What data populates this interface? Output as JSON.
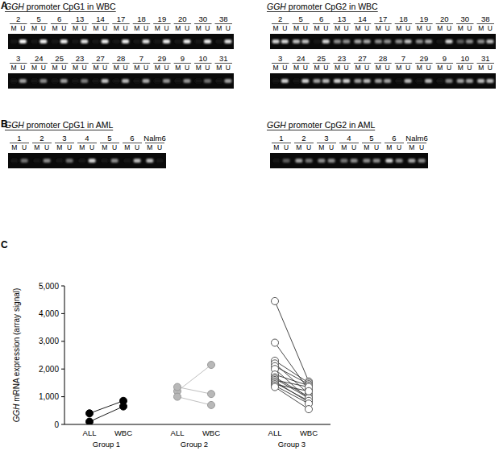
{
  "panels": [
    {
      "label": "A",
      "gels": [
        {
          "title": "GGH promoter CpG1 in WBC",
          "lane_labels": [
            "M",
            "U"
          ],
          "rows": [
            {
              "samples": [
                "2",
                "5",
                "6",
                "13",
                "14",
                "17",
                "18",
                "19",
                "20",
                "30",
                "38"
              ],
              "M": [
                0,
                0,
                0,
                0,
                0,
                0,
                0,
                0,
                0,
                0,
                0
              ],
              "U": [
                0.95,
                0.9,
                0.9,
                0.85,
                0.9,
                0.9,
                0.85,
                0.9,
                0.9,
                0.9,
                0.85
              ]
            },
            {
              "samples": [
                "3",
                "24",
                "25",
                "23",
                "27",
                "28",
                "7",
                "29",
                "9",
                "10",
                "31"
              ],
              "M": [
                0,
                0,
                0,
                0,
                0,
                0,
                0,
                0,
                0,
                0,
                0
              ],
              "U": [
                0.6,
                0.5,
                0.6,
                0.45,
                0.75,
                0.7,
                0.65,
                0.55,
                0.55,
                0.4,
                0.6
              ]
            }
          ]
        },
        {
          "title": "GGH promoter CpG2 in WBC",
          "lane_labels": [
            "M",
            "U"
          ],
          "rows": [
            {
              "samples": [
                "2",
                "5",
                "6",
                "13",
                "14",
                "17",
                "18",
                "19",
                "20",
                "30",
                "38"
              ],
              "M": [
                0.8,
                0.7,
                0,
                0.5,
                0.6,
                0.5,
                0.5,
                0.5,
                0,
                0.3,
                0.5
              ],
              "U": [
                0.8,
                0.7,
                0.8,
                0.5,
                0.6,
                0.5,
                0.7,
                0.6,
                0.8,
                0.5,
                0.7
              ]
            },
            {
              "samples": [
                "3",
                "24",
                "25",
                "23",
                "27",
                "28",
                "7",
                "29",
                "9",
                "10",
                "31"
              ],
              "M": [
                0,
                0,
                0.6,
                0.8,
                0.6,
                0.6,
                0,
                0,
                0,
                0.6,
                0.7
              ],
              "U": [
                0.8,
                0.8,
                0.7,
                0.8,
                0.7,
                0.6,
                0.7,
                0.7,
                0.5,
                0.6,
                0.7
              ]
            }
          ]
        }
      ]
    },
    {
      "label": "B",
      "gels": [
        {
          "title": "GGH promoter CpG1 in AML",
          "lane_labels": [
            "M",
            "U"
          ],
          "rows": [
            {
              "samples": [
                "1",
                "2",
                "3",
                "4",
                "5",
                "6",
                "Nalm6"
              ],
              "M": [
                0,
                0,
                0,
                0,
                0,
                0,
                0.7
              ],
              "U": [
                0.4,
                0.5,
                0.4,
                0.8,
                0.5,
                0.7,
                0
              ]
            }
          ]
        },
        {
          "title": "GGH promoter CpG2 in AML",
          "lane_labels": [
            "M",
            "U"
          ],
          "rows": [
            {
              "samples": [
                "1",
                "2",
                "3",
                "4",
                "5",
                "6",
                "Nalm6"
              ],
              "M": [
                0,
                0.6,
                0.5,
                0.4,
                0.5,
                0.8,
                0.6
              ],
              "U": [
                0.3,
                0.4,
                0.5,
                0.5,
                0.5,
                0.5,
                0.5
              ]
            }
          ]
        }
      ]
    }
  ],
  "chart_data": {
    "type": "line",
    "panel_label": "C",
    "ylabel": "GGH mRNA expression (array signal)",
    "categories": [
      "ALL",
      "WBC"
    ],
    "ylim": [
      0,
      5000
    ],
    "yticks": [
      0,
      {
        "value": 1000,
        "label": "1,000"
      },
      {
        "value": 2000,
        "label": "2,000"
      },
      {
        "value": 3000,
        "label": "3,000"
      },
      {
        "value": 4000,
        "label": "4,000"
      },
      {
        "value": 5000,
        "label": "5,000"
      }
    ],
    "groups": [
      {
        "name": "Group 1",
        "color": "#000000",
        "marker": "filled",
        "pairs": [
          [
            400,
            850
          ],
          [
            100,
            650
          ]
        ]
      },
      {
        "name": "Group 2",
        "color": "#b8b8b8",
        "marker": "filled",
        "pairs": [
          [
            1200,
            2150
          ],
          [
            1350,
            1100
          ],
          [
            1000,
            700
          ]
        ]
      },
      {
        "name": "Group 3",
        "color": "#555555",
        "marker": "open",
        "pairs": [
          [
            4450,
            1550
          ],
          [
            2950,
            1250
          ],
          [
            2300,
            1500
          ],
          [
            2200,
            1100
          ],
          [
            2100,
            1450
          ],
          [
            2000,
            900
          ],
          [
            1800,
            1400
          ],
          [
            1700,
            1000
          ],
          [
            1650,
            950
          ],
          [
            1600,
            1350
          ],
          [
            1550,
            800
          ],
          [
            1500,
            850
          ],
          [
            1450,
            1200
          ],
          [
            1400,
            750
          ],
          [
            1350,
            550
          ]
        ]
      }
    ]
  }
}
